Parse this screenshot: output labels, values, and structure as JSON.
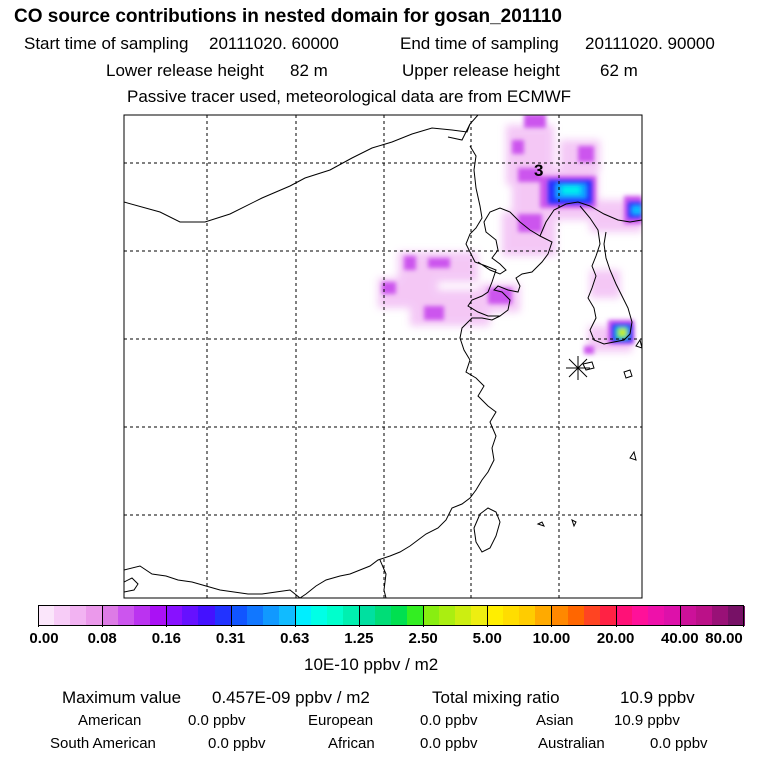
{
  "title": "CO  source contributions in nested domain for gosan_201110",
  "sampling": {
    "start_label": "Start time of sampling",
    "start_value": "20111020. 60000",
    "end_label": "End time of sampling",
    "end_value": "20111020. 90000"
  },
  "release": {
    "lower_label": "Lower release height",
    "lower_value": "82 m",
    "upper_label": "Upper release height",
    "upper_value": "62 m"
  },
  "note": "Passive tracer used, meteorological data are from ECMWF",
  "map": {
    "contour_label": "3",
    "receptor_marker": "asterisk-station-marker"
  },
  "colorbar": {
    "unit": "10E-10 ppbv / m2",
    "tick_labels": [
      "0.00",
      "0.08",
      "0.16",
      "0.31",
      "0.63",
      "1.25",
      "2.50",
      "5.00",
      "10.00",
      "20.00",
      "40.00",
      "80.00"
    ],
    "colors": [
      "#fbe6fb",
      "#f7ccf7",
      "#f2b3f2",
      "#eb99eb",
      "#dd7be6",
      "#cc55ee",
      "#bb33f0",
      "#aa11f5",
      "#8811ff",
      "#6611ff",
      "#4411ff",
      "#2233ff",
      "#1155ff",
      "#1177ff",
      "#1199ff",
      "#11bbff",
      "#00eeff",
      "#00ffe6",
      "#00ffcc",
      "#00f0b0",
      "#00e0a0",
      "#00dd77",
      "#00e050",
      "#33ee22",
      "#88ee11",
      "#aaee11",
      "#ccee11",
      "#eeee11",
      "#ffee00",
      "#ffdd00",
      "#ffcc00",
      "#ffaa00",
      "#ff8800",
      "#ff6600",
      "#ff4422",
      "#ff2244",
      "#ff1177",
      "#ff1199",
      "#ee11aa",
      "#dd11aa",
      "#cc1199",
      "#bb1188",
      "#991177",
      "#771166"
    ]
  },
  "stats": {
    "max_label": "Maximum value",
    "max_value": "0.457E-09 ppbv / m2",
    "total_label": "Total mixing ratio",
    "total_value": "10.9 ppbv",
    "regions": [
      {
        "name": "American",
        "value": "0.0 ppbv"
      },
      {
        "name": "European",
        "value": "0.0 ppbv"
      },
      {
        "name": "Asian",
        "value": "10.9 ppbv"
      },
      {
        "name": "South American",
        "value": "0.0 ppbv"
      },
      {
        "name": "African",
        "value": "0.0 ppbv"
      },
      {
        "name": "Australian",
        "value": "0.0 ppbv"
      }
    ]
  }
}
